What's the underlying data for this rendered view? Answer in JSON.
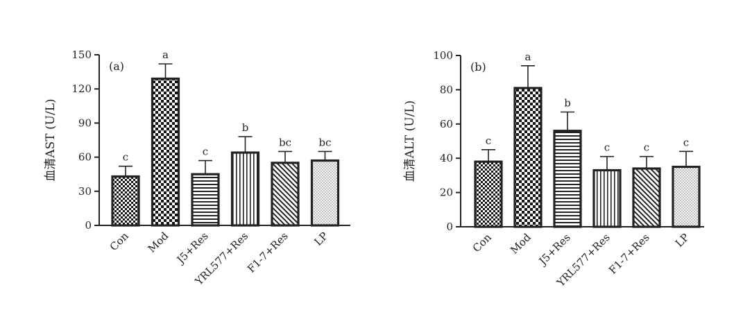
{
  "chart_data": [
    {
      "type": "bar",
      "panel_label": "(a)",
      "ylabel": "血清AST (U/L)",
      "ylim": [
        0,
        150
      ],
      "yticks": [
        0,
        30,
        60,
        90,
        120,
        150
      ],
      "categories": [
        "Con",
        "Mod",
        "J5+Res",
        "YRL577+Res",
        "F1-7+Res",
        "LP"
      ],
      "values": [
        43,
        129,
        45,
        64,
        55,
        57
      ],
      "errors": [
        9,
        13,
        12,
        14,
        10,
        8
      ],
      "significance": [
        "c",
        "a",
        "c",
        "b",
        "bc",
        "bc"
      ],
      "patterns": [
        "checker-small",
        "checker-large",
        "horizontal",
        "vertical",
        "diagonal",
        "dots"
      ]
    },
    {
      "type": "bar",
      "panel_label": "(b)",
      "ylabel": "血清ALT (U/L)",
      "ylim": [
        0,
        100
      ],
      "yticks": [
        0,
        20,
        40,
        60,
        80,
        100
      ],
      "categories": [
        "Con",
        "Mod",
        "J5+Res",
        "YRL577+Res",
        "F1-7+Res",
        "LP"
      ],
      "values": [
        38,
        81,
        56,
        33,
        34,
        35
      ],
      "errors": [
        7,
        13,
        11,
        8,
        7,
        9
      ],
      "significance": [
        "c",
        "a",
        "b",
        "c",
        "c",
        "c"
      ],
      "patterns": [
        "checker-small",
        "checker-large",
        "horizontal",
        "vertical",
        "diagonal",
        "dots"
      ]
    }
  ]
}
